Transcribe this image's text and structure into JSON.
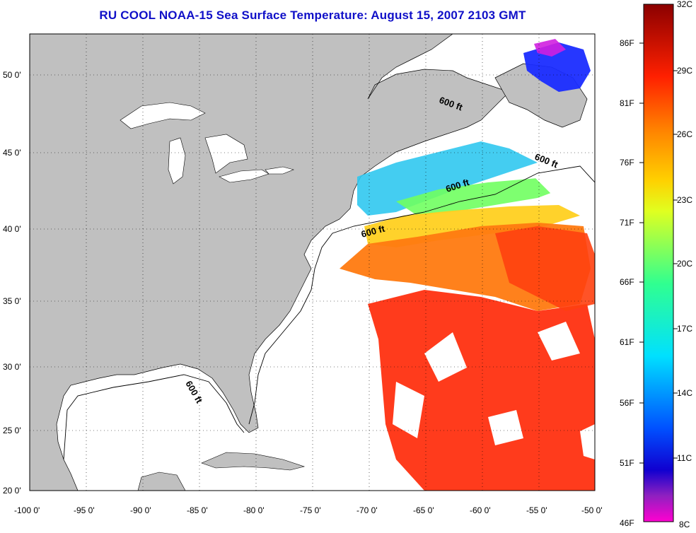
{
  "title": "RU COOL  NOAA-15  Sea Surface Temperature:  August 15, 2007 2103 GMT",
  "map": {
    "lon_range": [
      -100,
      -50
    ],
    "lat_range": [
      20,
      52.5
    ],
    "lat_labels": [
      "50 0'",
      "45 0'",
      "40 0'",
      "35 0'",
      "30 0'",
      "25 0'",
      "20 0'"
    ],
    "lon_labels": [
      "-100 0'",
      "-95 0'",
      "-90 0'",
      "-85 0'",
      "-80 0'",
      "-75 0'",
      "-70 0'",
      "-65 0'",
      "-60 0'",
      "-55 0'",
      "-50 0'"
    ],
    "depth_labels": [
      "600 ft",
      "600 ft",
      "600 ft",
      "600 ft",
      "600 ft"
    ],
    "land_color": "#c0c0c0",
    "cloud_color": "#ffffff"
  },
  "colorbar": {
    "left_labels": [
      "86F",
      "81F",
      "76F",
      "71F",
      "66F",
      "61F",
      "56F",
      "51F",
      "46F"
    ],
    "right_labels": [
      "32C",
      "29C",
      "26C",
      "23C",
      "20C",
      "17C",
      "14C",
      "11C",
      "8C"
    ],
    "gradient_stops": [
      "#8b0000",
      "#ff0000",
      "#ff8000",
      "#ffff00",
      "#00ff80",
      "#00ffff",
      "#0080ff",
      "#0000ff",
      "#8000c0",
      "#ff00ff"
    ]
  },
  "icons": [
    "temperature-colorbar"
  ]
}
